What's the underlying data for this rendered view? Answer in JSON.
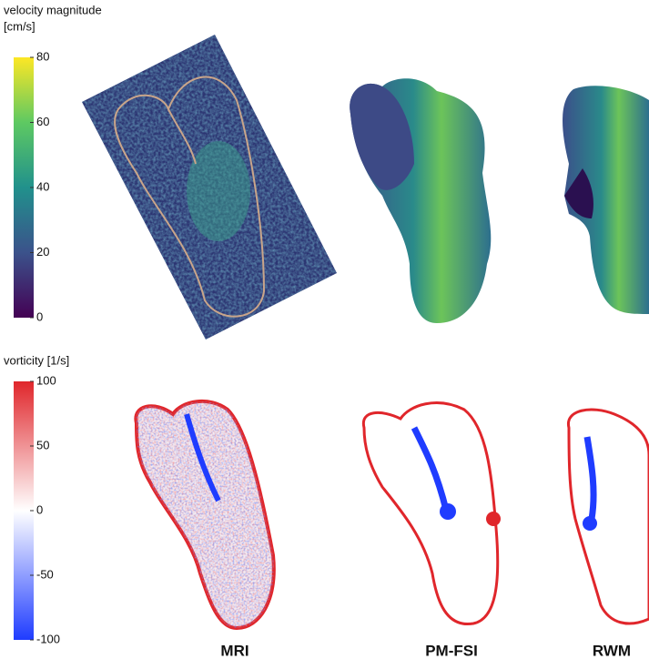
{
  "velocity_colorbar": {
    "title_lines": [
      "velocity magnitude",
      "[cm/s]"
    ],
    "lim": [
      0,
      80
    ],
    "ticks": [
      0,
      20,
      40,
      60,
      80
    ]
  },
  "vorticity_colorbar": {
    "title": "vorticity [1/s]",
    "lim": [
      -100,
      100
    ],
    "ticks": [
      -100,
      -50,
      0,
      50,
      100
    ]
  },
  "panels": {
    "labels": [
      "MRI",
      "PM-FSI",
      "RWM"
    ]
  }
}
